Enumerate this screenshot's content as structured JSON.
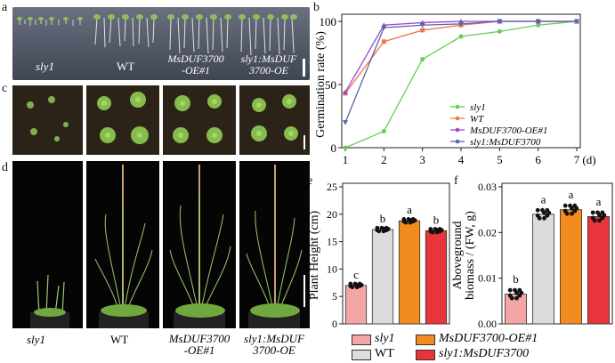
{
  "panels": {
    "a": "a",
    "b": "b",
    "c": "c",
    "d": "d",
    "e": "e",
    "f": "f"
  },
  "genotypes": {
    "sly1": "sly1",
    "wt": "WT",
    "oe1_line1": "MsDUF3700",
    "oe1_line2": "-OE#1",
    "cross_line1": "sly1:MsDUF",
    "cross_line2": "3700-OE"
  },
  "bottom_labels": {
    "sly1": "sly1",
    "wt": "WT",
    "oe1_line1": "MsDUF3700",
    "oe1_line2": "-OE#1",
    "cross_line1": "sly1:MsDUF",
    "cross_line2": "3700-OE"
  },
  "colors": {
    "sly1": "#f4a6a6",
    "wt": "#dcdcdc",
    "oe": "#f28c1e",
    "cross": "#e8353b",
    "green": "#66cc55",
    "orange_line": "#f07850",
    "purple": "#9b48d4",
    "slate": "#5566aa"
  },
  "legend": {
    "sly1": "sly1",
    "wt": "WT",
    "oe": "MsDUF3700-OE#1",
    "cross": "sly1:MsDUF3700"
  },
  "chart_data": [
    {
      "panel": "b",
      "type": "line",
      "ylabel": "Germination rate (%)",
      "xlabel": "(d)",
      "x": [
        1,
        2,
        3,
        4,
        5,
        6,
        7
      ],
      "xlim": [
        1,
        7
      ],
      "ylim": [
        0,
        100
      ],
      "yticks": [
        0,
        50,
        100
      ],
      "series": [
        {
          "name": "sly1",
          "values": [
            0,
            13,
            70,
            88,
            92,
            97,
            100
          ],
          "color": "#66cc55",
          "marker": "circle"
        },
        {
          "name": "WT",
          "values": [
            43,
            84,
            93,
            97,
            100,
            100,
            100
          ],
          "color": "#f07850",
          "marker": "square"
        },
        {
          "name": "MsDUF3700-OE#1",
          "values": [
            44,
            97,
            99,
            100,
            100,
            100,
            100
          ],
          "color": "#9b48d4",
          "marker": "triangle"
        },
        {
          "name": "sly1:MsDUF3700",
          "values": [
            20,
            95,
            97,
            98,
            100,
            100,
            100
          ],
          "color": "#5566aa",
          "marker": "triangle-down"
        }
      ]
    },
    {
      "panel": "e",
      "type": "bar",
      "ylabel": "Plant Height (cm)",
      "categories": [
        "sly1",
        "WT",
        "MsDUF3700-OE#1",
        "sly1:MsDUF3700-OE"
      ],
      "values": [
        7,
        17.2,
        18.8,
        17
      ],
      "letters": [
        "c",
        "b",
        "a",
        "b"
      ],
      "ylim": [
        0,
        25
      ],
      "yticks": [
        0,
        5,
        10,
        15,
        20,
        25
      ]
    },
    {
      "panel": "f",
      "type": "bar",
      "ylabel_line1": "Aboveground",
      "ylabel_line2": "biomass / (FW,  g)",
      "categories": [
        "sly1",
        "WT",
        "MsDUF3700-OE#1",
        "sly1:MsDUF3700-OE"
      ],
      "values": [
        0.0065,
        0.024,
        0.025,
        0.0235
      ],
      "letters": [
        "b",
        "a",
        "a",
        "a"
      ],
      "ylim": [
        0,
        0.03
      ],
      "yticks": [
        "0.00",
        "0.01",
        "0.02",
        "0.03"
      ]
    }
  ]
}
